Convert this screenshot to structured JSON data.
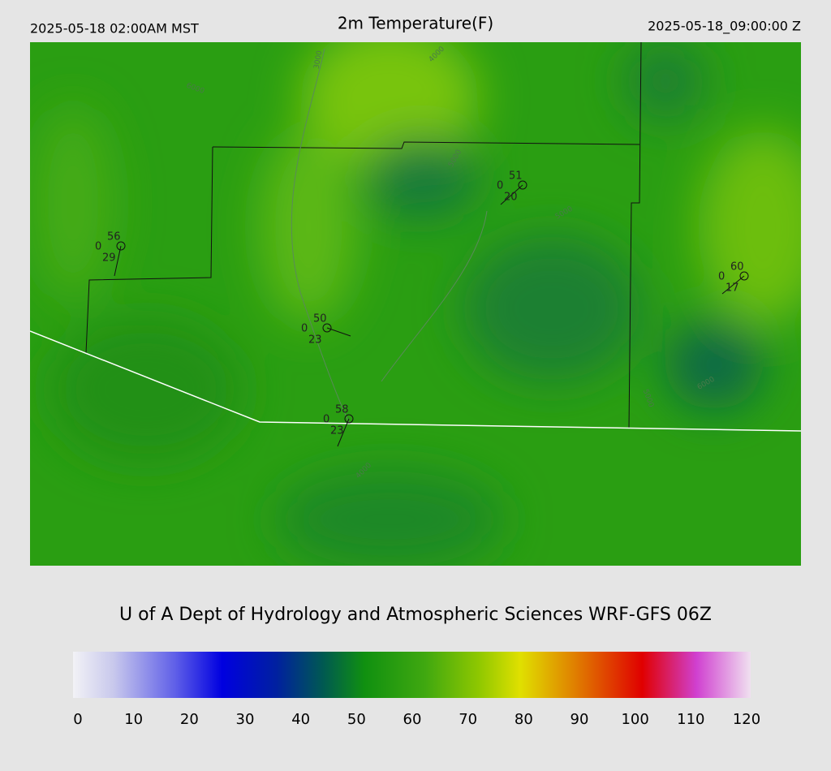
{
  "header": {
    "left": "2025-05-18 02:00AM MST",
    "title": "2m Temperature(F)",
    "right": "2025-05-18_09:00:00 Z"
  },
  "footer": "U of A Dept of Hydrology and Atmospheric Sciences WRF-GFS 06Z",
  "stations": [
    {
      "temperature": 56,
      "precip": 0,
      "dewpoint": 29
    },
    {
      "temperature": 51,
      "precip": 0,
      "dewpoint": 20
    },
    {
      "temperature": 60,
      "precip": 0,
      "dewpoint": 17
    },
    {
      "temperature": 50,
      "precip": 0,
      "dewpoint": 23
    },
    {
      "temperature": 58,
      "precip": 0,
      "dewpoint": 23
    }
  ],
  "contour_labels": [
    3000,
    4000,
    5000,
    5000,
    6000,
    6000,
    5000,
    4000
  ],
  "colorbar": {
    "range": [
      0,
      120
    ],
    "ticks": [
      0,
      10,
      20,
      30,
      40,
      50,
      60,
      70,
      80,
      90,
      100,
      110,
      120
    ]
  }
}
